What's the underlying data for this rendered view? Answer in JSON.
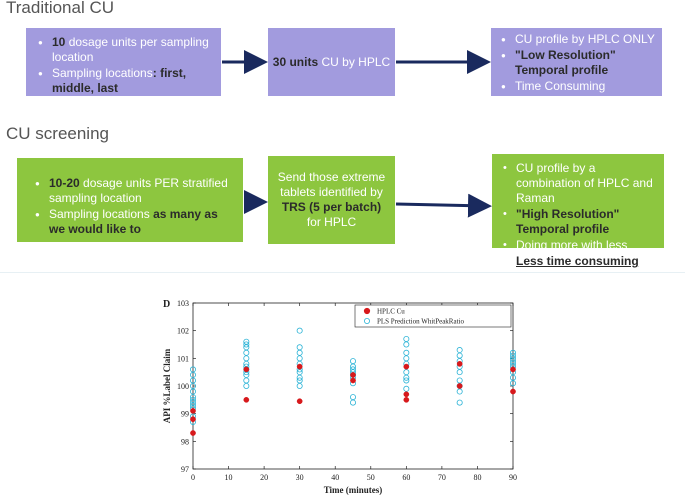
{
  "traditional": {
    "title": "Traditional CU",
    "box1": {
      "b1_strong": "10",
      "b1_rest": " dosage units per sampling location",
      "b2_rest": "Sampling locations",
      "b2_colon": ": ",
      "b2_strong": "first, middle, last"
    },
    "box2": {
      "strong": "30 units",
      "rest": " CU by HPLC"
    },
    "box3": {
      "b1": "CU profile by HPLC ONLY",
      "b2": "\"Low Resolution\" Temporal profile",
      "b3": "Time Consuming"
    }
  },
  "screening": {
    "title": "CU screening",
    "box1": {
      "b1_strong": "10-20",
      "b1_rest": " dosage units PER stratified sampling location",
      "b2_rest": "Sampling locations ",
      "b2_strong": "as many as we would like to"
    },
    "box2": {
      "pre": "Send those extreme tablets identified by",
      "strong": "TRS (5 per batch)",
      "post": " for HPLC"
    },
    "box3": {
      "b1": "CU profile by a combination of HPLC and Raman",
      "b2": "\"High Resolution\" Temporal profile",
      "b3": "Doing more with less",
      "b4": "Less time consuming"
    }
  },
  "colors": {
    "purple_box": "#a29bde",
    "green_box": "#8dc63f",
    "arrow": "#1a2a5e",
    "hplc_marker": "#d7191c",
    "pls_marker": "#2bb3d6"
  },
  "chart_data": {
    "type": "scatter",
    "panel_label": "D",
    "title": "",
    "xlabel": "Time (minutes)",
    "ylabel": "API  %Label Claim",
    "xlim": [
      0,
      90
    ],
    "ylim": [
      97,
      103
    ],
    "xticks": [
      0,
      10,
      20,
      30,
      40,
      50,
      60,
      70,
      80,
      90
    ],
    "yticks": [
      97,
      98,
      99,
      100,
      101,
      102,
      103
    ],
    "legend_position": "top-right",
    "series": [
      {
        "name": "HPLC Cu",
        "marker": "filled-circle",
        "points": [
          [
            0,
            98.3
          ],
          [
            0,
            98.8
          ],
          [
            0,
            99.1
          ],
          [
            15,
            99.5
          ],
          [
            15,
            100.6
          ],
          [
            30,
            99.45
          ],
          [
            30,
            100.7
          ],
          [
            45,
            100.2
          ],
          [
            45,
            100.4
          ],
          [
            60,
            99.5
          ],
          [
            60,
            99.7
          ],
          [
            60,
            100.7
          ],
          [
            75,
            100.0
          ],
          [
            75,
            100.8
          ],
          [
            90,
            99.8
          ],
          [
            90,
            100.6
          ]
        ]
      },
      {
        "name": "PLS Prediction WhitPeakRatio",
        "marker": "open-circle",
        "points": [
          [
            0,
            98.7
          ],
          [
            0,
            98.9
          ],
          [
            0,
            99.2
          ],
          [
            0,
            99.3
          ],
          [
            0,
            99.4
          ],
          [
            0,
            99.5
          ],
          [
            0,
            99.6
          ],
          [
            0,
            99.8
          ],
          [
            0,
            100.0
          ],
          [
            0,
            100.2
          ],
          [
            0,
            100.4
          ],
          [
            0,
            100.6
          ],
          [
            15,
            100.0
          ],
          [
            15,
            100.2
          ],
          [
            15,
            100.4
          ],
          [
            15,
            100.5
          ],
          [
            15,
            100.6
          ],
          [
            15,
            100.7
          ],
          [
            15,
            100.8
          ],
          [
            15,
            101.0
          ],
          [
            15,
            101.2
          ],
          [
            15,
            101.4
          ],
          [
            15,
            101.5
          ],
          [
            15,
            101.6
          ],
          [
            30,
            100.0
          ],
          [
            30,
            100.2
          ],
          [
            30,
            100.3
          ],
          [
            30,
            100.5
          ],
          [
            30,
            100.6
          ],
          [
            30,
            100.8
          ],
          [
            30,
            101.0
          ],
          [
            30,
            101.2
          ],
          [
            30,
            101.4
          ],
          [
            30,
            102.0
          ],
          [
            45,
            99.4
          ],
          [
            45,
            99.6
          ],
          [
            45,
            100.1
          ],
          [
            45,
            100.3
          ],
          [
            45,
            100.4
          ],
          [
            45,
            100.5
          ],
          [
            45,
            100.6
          ],
          [
            45,
            100.7
          ],
          [
            45,
            100.9
          ],
          [
            60,
            99.9
          ],
          [
            60,
            100.2
          ],
          [
            60,
            100.3
          ],
          [
            60,
            100.5
          ],
          [
            60,
            100.8
          ],
          [
            60,
            101.0
          ],
          [
            60,
            101.2
          ],
          [
            60,
            101.5
          ],
          [
            60,
            101.7
          ],
          [
            75,
            99.4
          ],
          [
            75,
            99.8
          ],
          [
            75,
            100.0
          ],
          [
            75,
            100.2
          ],
          [
            75,
            100.5
          ],
          [
            75,
            100.7
          ],
          [
            75,
            100.9
          ],
          [
            75,
            101.1
          ],
          [
            75,
            101.3
          ],
          [
            90,
            100.1
          ],
          [
            90,
            100.3
          ],
          [
            90,
            100.5
          ],
          [
            90,
            100.7
          ],
          [
            90,
            100.8
          ],
          [
            90,
            100.9
          ],
          [
            90,
            101.0
          ],
          [
            90,
            101.1
          ],
          [
            90,
            101.2
          ]
        ]
      }
    ]
  }
}
